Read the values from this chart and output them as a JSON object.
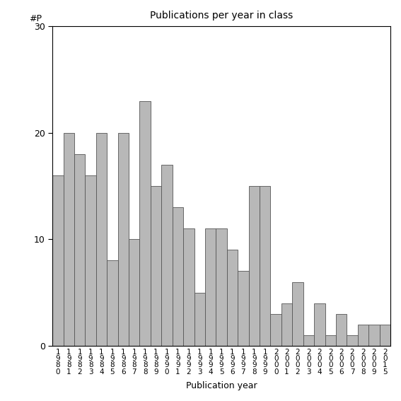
{
  "title": "Publications per year in class",
  "xlabel": "Publication year",
  "ylabel": "#P",
  "bar_color": "#b8b8b8",
  "edge_color": "#555555",
  "ylim": [
    0,
    30
  ],
  "yticks": [
    0,
    10,
    20,
    30
  ],
  "categories": [
    "1980",
    "1981",
    "1982",
    "1983",
    "1984",
    "1985",
    "1986",
    "1987",
    "1988",
    "1989",
    "1990",
    "1991",
    "1992",
    "1993",
    "1994",
    "1995",
    "1996",
    "1997",
    "1998",
    "1999",
    "2000",
    "2001",
    "2002",
    "2003",
    "2004",
    "2005",
    "2006",
    "2007",
    "2008",
    "2009",
    "2015"
  ],
  "values": [
    16,
    20,
    18,
    16,
    20,
    8,
    20,
    10,
    23,
    15,
    17,
    13,
    11,
    5,
    11,
    11,
    9,
    7,
    15,
    15,
    3,
    4,
    6,
    1,
    4,
    1,
    3,
    1,
    2,
    2,
    2
  ],
  "figsize": [
    5.67,
    5.67
  ],
  "dpi": 100
}
